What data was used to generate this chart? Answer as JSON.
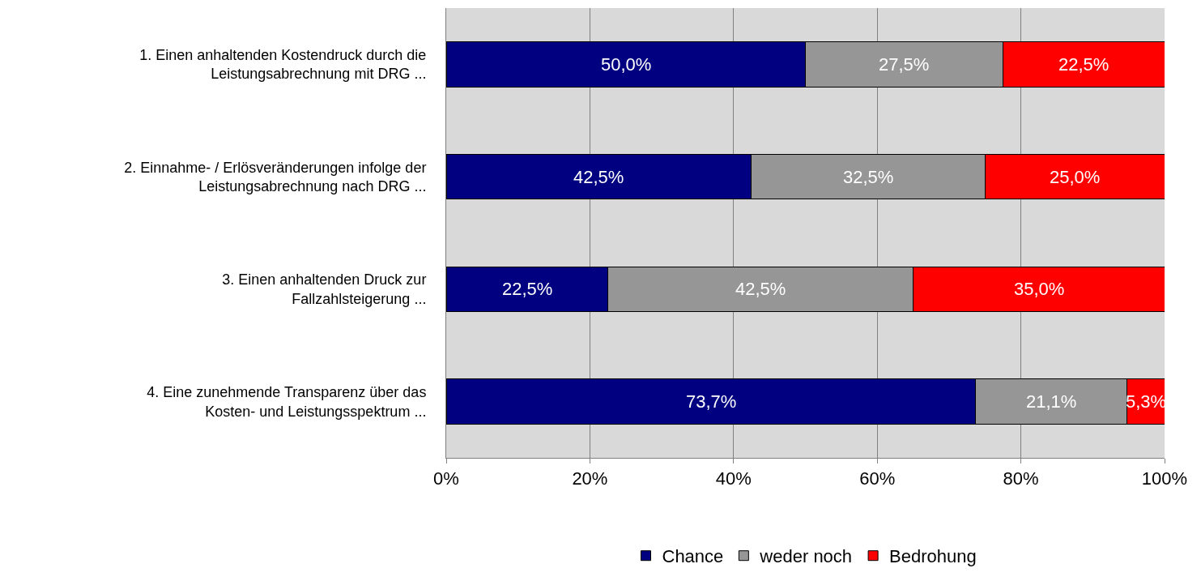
{
  "chart_data": {
    "type": "bar",
    "orientation": "horizontal",
    "stacked": true,
    "categories": [
      "1. Einen anhaltenden Kostendruck durch die\nLeistungsabrechnung mit DRG ...",
      "2. Einnahme- / Erlösveränderungen infolge der\nLeistungsabrechnung nach DRG ...",
      "3. Einen anhaltenden Druck zur\nFallzahlsteigerung ...",
      "4. Eine zunehmende Transparenz über das\nKosten- und Leistungsspektrum ..."
    ],
    "series": [
      {
        "name": "Chance",
        "color": "#000080",
        "values": [
          50.0,
          42.5,
          22.5,
          73.7
        ],
        "value_labels": [
          "50,0%",
          "42,5%",
          "22,5%",
          "73,7%"
        ]
      },
      {
        "name": "weder noch",
        "color": "#969696",
        "values": [
          27.5,
          32.5,
          42.5,
          21.1
        ],
        "value_labels": [
          "27,5%",
          "32,5%",
          "42,5%",
          "21,1%"
        ]
      },
      {
        "name": "Bedrohung",
        "color": "#ff0000",
        "values": [
          22.5,
          25.0,
          35.0,
          5.3
        ],
        "value_labels": [
          "22,5%",
          "25,0%",
          "35,0%",
          "5,3%"
        ]
      }
    ],
    "xlim": [
      0,
      100
    ],
    "xticks": [
      {
        "value": 0,
        "label": "0%"
      },
      {
        "value": 20,
        "label": "20%"
      },
      {
        "value": 40,
        "label": "40%"
      },
      {
        "value": 60,
        "label": "60%"
      },
      {
        "value": 80,
        "label": "80%"
      },
      {
        "value": 100,
        "label": "100%"
      }
    ],
    "grid": "x",
    "legend": "bottom"
  }
}
